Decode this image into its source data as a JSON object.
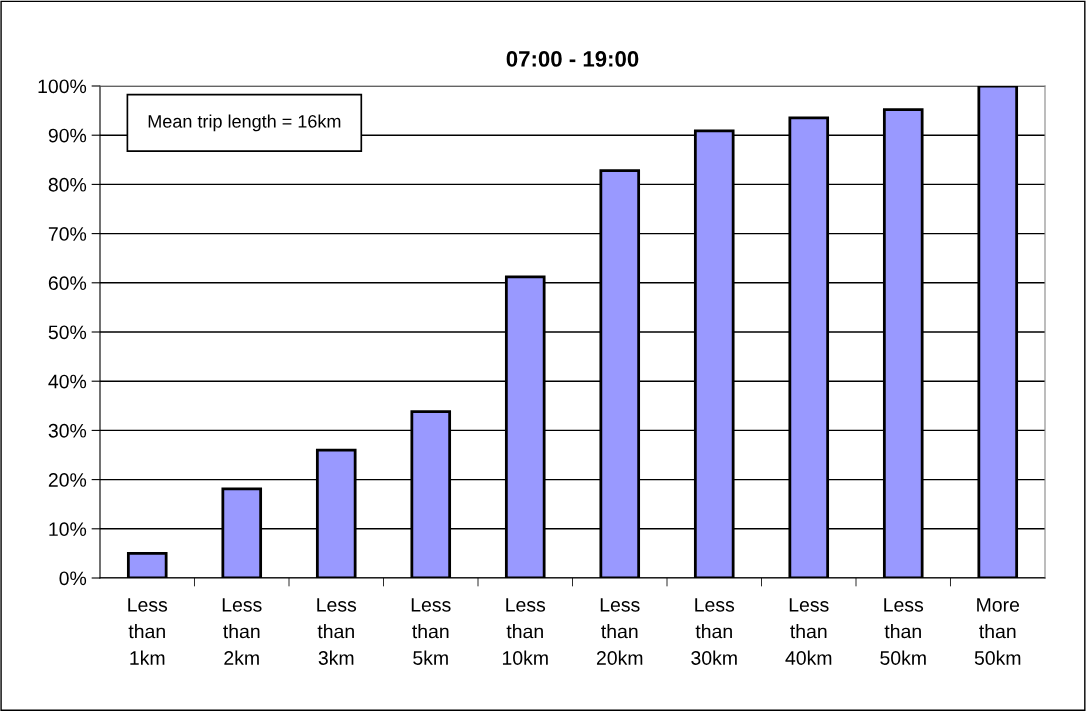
{
  "chart_data": {
    "type": "bar",
    "title": "07:00 - 19:00",
    "categories": [
      "Less\nthan\n1km",
      "Less\nthan\n2km",
      "Less\nthan\n3km",
      "Less\nthan\n5km",
      "Less\nthan\n10km",
      "Less\nthan\n20km",
      "Less\nthan\n30km",
      "Less\nthan\n40km",
      "Less\nthan\n50km",
      "More\nthan\n50km"
    ],
    "values": [
      5.0,
      18.1,
      26.0,
      33.8,
      61.2,
      82.8,
      90.9,
      93.5,
      95.2,
      100
    ],
    "color": "#9999ff",
    "ylim": [
      0,
      100
    ],
    "yticks": [
      {
        "value": 0,
        "label": "0%"
      },
      {
        "value": 10,
        "label": "10%"
      },
      {
        "value": 20,
        "label": "20%"
      },
      {
        "value": 30,
        "label": "30%"
      },
      {
        "value": 40,
        "label": "40%"
      },
      {
        "value": 50,
        "label": "50%"
      },
      {
        "value": 60,
        "label": "60%"
      },
      {
        "value": 70,
        "label": "70%"
      },
      {
        "value": 80,
        "label": "80%"
      },
      {
        "value": 90,
        "label": "90%"
      },
      {
        "value": 100,
        "label": "100%"
      }
    ],
    "grid": "y",
    "annotations": [
      "Mean trip length = 16km"
    ]
  }
}
